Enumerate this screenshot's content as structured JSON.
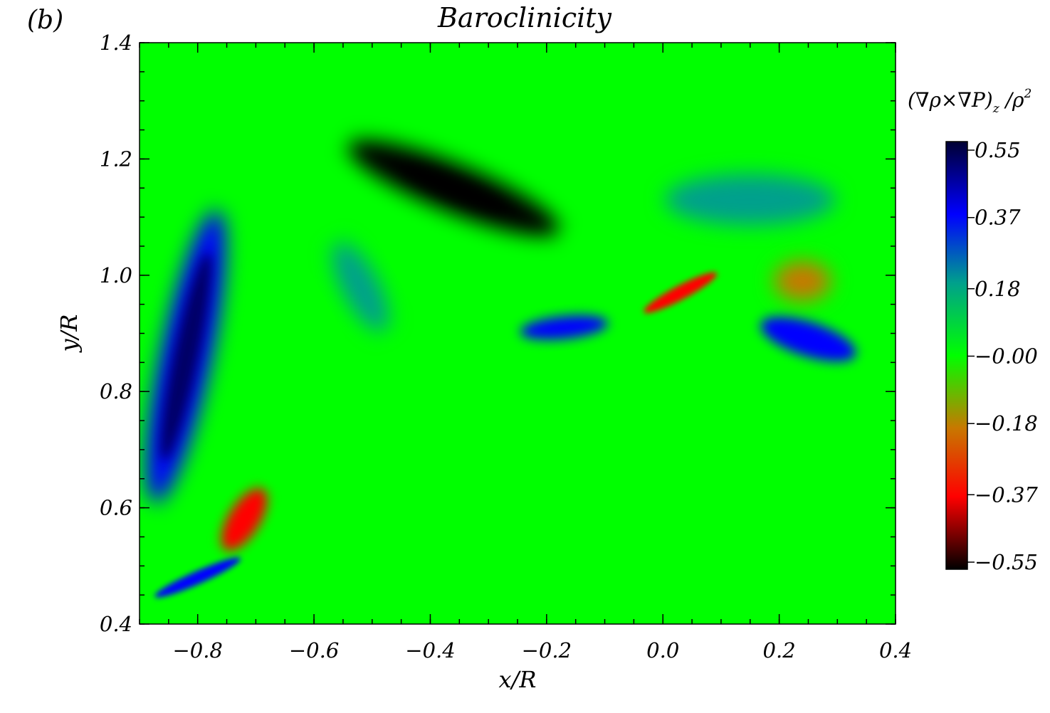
{
  "chart_data": {
    "type": "heatmap",
    "panel_label": "(b)",
    "title": "Baroclinicity",
    "xlabel": "x/R",
    "ylabel": "y/R",
    "xlim": [
      -0.9,
      0.4
    ],
    "ylim": [
      0.4,
      1.4
    ],
    "x_ticks": [
      -0.8,
      -0.6,
      -0.4,
      -0.2,
      0.0,
      0.2,
      0.4
    ],
    "x_tick_labels": [
      "−0.8",
      "−0.6",
      "−0.4",
      "−0.2",
      "0.0",
      "0.2",
      "0.4"
    ],
    "y_ticks": [
      0.4,
      0.6,
      0.8,
      1.0,
      1.2,
      1.4
    ],
    "y_tick_labels": [
      "0.4",
      "0.6",
      "0.8",
      "1.0",
      "1.2",
      "1.4"
    ],
    "colorbar": {
      "title": "(∇ρ×∇P)",
      "title_sub": "z",
      "title_tail": " /ρ",
      "title_sup": "2",
      "range": [
        -0.55,
        0.55
      ],
      "ticks": [
        0.55,
        0.37,
        0.18,
        0.0,
        -0.18,
        -0.37,
        -0.55
      ],
      "tick_labels": [
        "0.55",
        "0.37",
        "0.18",
        "−0.00",
        "−0.18",
        "−0.37",
        "−0.55"
      ],
      "colors": {
        "0.55": "#000033",
        "0.37": "#0000ff",
        "0.18": "#00a08c",
        "0.00": "#00ff00",
        "-0.18": "#c87800",
        "-0.37": "#ff0000",
        "-0.55": "#000000"
      }
    },
    "features": [
      {
        "name": "left-blue-arc",
        "x": -0.82,
        "y": 0.86,
        "value": 0.42
      },
      {
        "name": "upper-red-arc",
        "x": -0.36,
        "y": 1.15,
        "value": -0.47
      },
      {
        "name": "center-blue-blob",
        "x": -0.17,
        "y": 0.91,
        "value": 0.4
      },
      {
        "name": "center-red-streak",
        "x": 0.03,
        "y": 0.97,
        "value": -0.4
      },
      {
        "name": "right-blue-blob",
        "x": 0.25,
        "y": 0.89,
        "value": 0.38
      },
      {
        "name": "lower-red-blob",
        "x": -0.72,
        "y": 0.58,
        "value": -0.38
      },
      {
        "name": "bottom-blue-streak",
        "x": -0.8,
        "y": 0.48,
        "value": 0.42
      },
      {
        "name": "upper-right-teal",
        "x": 0.15,
        "y": 1.13,
        "value": 0.12
      },
      {
        "name": "mid-teal-patch",
        "x": -0.52,
        "y": 0.98,
        "value": 0.1
      },
      {
        "name": "right-brown-patch",
        "x": 0.24,
        "y": 0.99,
        "value": -0.12
      }
    ]
  }
}
